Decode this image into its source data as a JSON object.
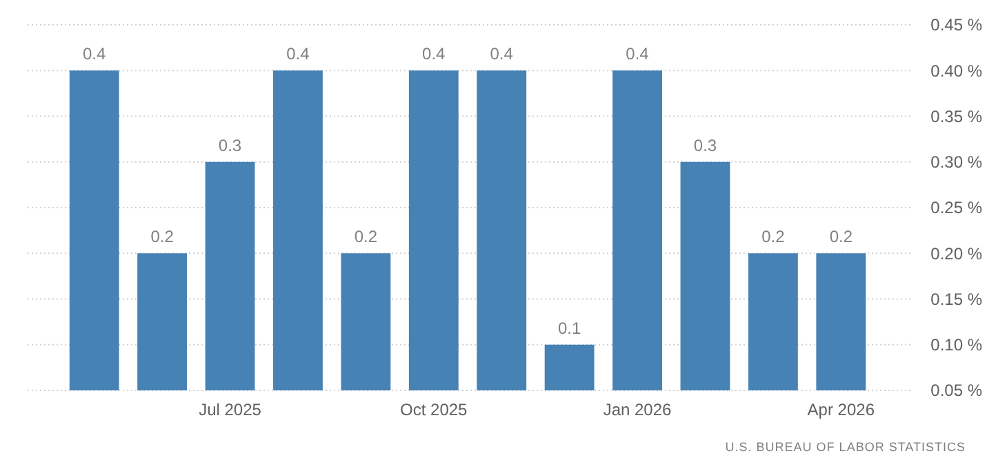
{
  "chart_data": {
    "type": "bar",
    "categories": [
      null,
      null,
      "Jul 2025",
      null,
      null,
      "Oct 2025",
      null,
      null,
      "Jan 2026",
      null,
      null,
      "Apr 2026"
    ],
    "values": [
      0.4,
      0.2,
      0.3,
      0.4,
      0.2,
      0.4,
      0.4,
      0.1,
      0.4,
      0.3,
      0.2,
      0.2
    ],
    "color": "#4682b4",
    "ylim": [
      0.05,
      0.45
    ],
    "yticks": [
      {
        "value": 0.05,
        "label": "0.05 %"
      },
      {
        "value": 0.1,
        "label": "0.10 %"
      },
      {
        "value": 0.15,
        "label": "0.15 %"
      },
      {
        "value": 0.2,
        "label": "0.20 %"
      },
      {
        "value": 0.25,
        "label": "0.25 %"
      },
      {
        "value": 0.3,
        "label": "0.30 %"
      },
      {
        "value": 0.35,
        "label": "0.35 %"
      },
      {
        "value": 0.4,
        "label": "0.40 %"
      },
      {
        "value": 0.45,
        "label": "0.45 %"
      }
    ],
    "grid": "y",
    "data_labels": true,
    "annotations": [
      "U.S. BUREAU OF LABOR STATISTICS"
    ]
  }
}
